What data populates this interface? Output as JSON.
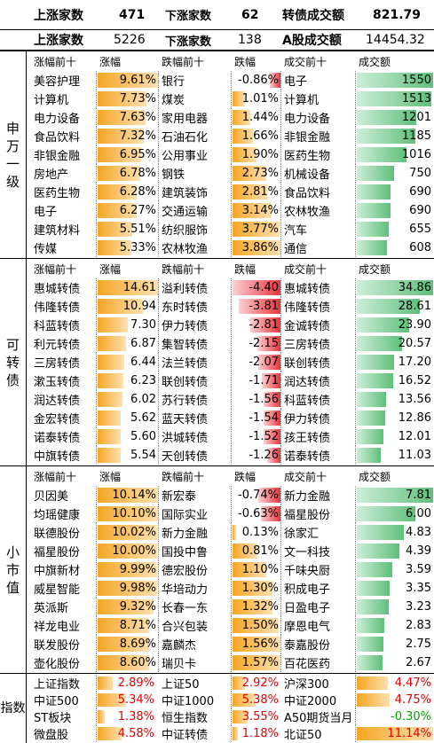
{
  "top1": {
    "up_label": "上涨家数",
    "up_val": "471",
    "down_label": "下涨家数",
    "down_val": "62",
    "vol_label": "转债成交额",
    "vol_val": "821.79"
  },
  "top2": {
    "up_label": "上涨家数",
    "up_val": "5226",
    "down_label": "下涨家数",
    "down_val": "138",
    "vol_label": "A股成交额",
    "vol_val": "14454.32"
  },
  "sw": {
    "label": "申万一级",
    "headers": [
      "涨幅前十",
      "涨幅",
      "跌幅前十",
      "跌幅",
      "成交前十",
      "成交额"
    ],
    "rows": [
      [
        "美容护理",
        "9.61%",
        "银行",
        "-0.86%",
        "电子",
        "1550"
      ],
      [
        "计算机",
        "7.73%",
        "煤炭",
        "1.01%",
        "计算机",
        "1513"
      ],
      [
        "电力设备",
        "7.63%",
        "家用电器",
        "1.44%",
        "电力设备",
        "1201"
      ],
      [
        "食品饮料",
        "7.32%",
        "石油石化",
        "1.66%",
        "非银金融",
        "1185"
      ],
      [
        "非银金融",
        "6.95%",
        "公用事业",
        "1.90%",
        "医药生物",
        "1016"
      ],
      [
        "房地产",
        "6.78%",
        "钢铁",
        "2.73%",
        "机械设备",
        "750"
      ],
      [
        "医药生物",
        "6.28%",
        "建筑装饰",
        "2.81%",
        "食品饮料",
        "690"
      ],
      [
        "电子",
        "6.27%",
        "交通运输",
        "3.14%",
        "农林牧渔",
        "690"
      ],
      [
        "建筑材料",
        "5.51%",
        "纺织服饰",
        "3.77%",
        "汽车",
        "655"
      ],
      [
        "传媒",
        "5.33%",
        "农林牧渔",
        "3.86%",
        "通信",
        "608"
      ]
    ],
    "up_vals": [
      9.61,
      7.73,
      7.63,
      7.32,
      6.95,
      6.78,
      6.28,
      6.27,
      5.51,
      5.33
    ],
    "dn_vals": [
      -0.86,
      1.01,
      1.44,
      1.66,
      1.9,
      2.73,
      2.81,
      3.14,
      3.77,
      3.86
    ],
    "vol_vals": [
      1550,
      1513,
      1201,
      1185,
      1016,
      750,
      690,
      690,
      655,
      608
    ]
  },
  "cb": {
    "label": "可转债",
    "headers": [
      "涨幅前十",
      "涨幅",
      "跌幅前十",
      "跌幅",
      "成交前十",
      "成交额"
    ],
    "rows": [
      [
        "惠城转债",
        "14.61",
        "溢利转债",
        "-4.40",
        "惠城转债",
        "34.86"
      ],
      [
        "伟隆转债",
        "10.94",
        "东时转债",
        "-3.81",
        "伟隆转债",
        "28.61"
      ],
      [
        "科蓝转债",
        "7.30",
        "伊力转债",
        "-2.81",
        "金诚转债",
        "23.90"
      ],
      [
        "利元转债",
        "6.87",
        "集智转债",
        "-2.15",
        "三房转债",
        "20.57"
      ],
      [
        "三房转债",
        "6.44",
        "法兰转债",
        "-2.07",
        "联创转债",
        "17.20"
      ],
      [
        "漱玉转债",
        "6.23",
        "联创转债",
        "-1.71",
        "润达转债",
        "16.52"
      ],
      [
        "润达转债",
        "6.02",
        "苏行转债",
        "-1.56",
        "科蓝转债",
        "13.56"
      ],
      [
        "金宏转债",
        "5.62",
        "蓝天转债",
        "-1.54",
        "伊力转债",
        "12.86"
      ],
      [
        "诺泰转债",
        "5.60",
        "洪城转债",
        "-1.52",
        "孩王转债",
        "12.01"
      ],
      [
        "中旗转债",
        "5.54",
        "天创转债",
        "-1.26",
        "诺泰转债",
        "11.03"
      ]
    ],
    "up_vals": [
      14.61,
      10.94,
      7.3,
      6.87,
      6.44,
      6.23,
      6.02,
      5.62,
      5.6,
      5.54
    ],
    "dn_vals": [
      -4.4,
      -3.81,
      -2.81,
      -2.15,
      -2.07,
      -1.71,
      -1.56,
      -1.54,
      -1.52,
      -1.26
    ],
    "vol_vals": [
      34.86,
      28.61,
      23.9,
      20.57,
      17.2,
      16.52,
      13.56,
      12.86,
      12.01,
      11.03
    ]
  },
  "sm": {
    "label": "小市值",
    "headers": [
      "涨幅前十",
      "涨幅",
      "跌幅前十",
      "跌幅",
      "成交前十",
      "成交额"
    ],
    "rows": [
      [
        "贝因美",
        "10.14%",
        "新宏泰",
        "-0.74%",
        "新力金融",
        "7.81"
      ],
      [
        "均瑶健康",
        "10.10%",
        "国际实业",
        "-0.63%",
        "福星股份",
        "6.00"
      ],
      [
        "联德股份",
        "10.02%",
        "新力金融",
        "0.13%",
        "徐家汇",
        "4.83"
      ],
      [
        "福星股份",
        "10.00%",
        "国投中鲁",
        "0.81%",
        "文一科技",
        "4.39"
      ],
      [
        "中旗新材",
        "9.99%",
        "德宏股份",
        "1.10%",
        "千味央厨",
        "3.59"
      ],
      [
        "威星智能",
        "9.98%",
        "华培动力",
        "1.30%",
        "积成电子",
        "3.35"
      ],
      [
        "英派斯",
        "9.32%",
        "长春一东",
        "1.32%",
        "日盈电子",
        "3.23"
      ],
      [
        "祥龙电业",
        "8.71%",
        "合兴包装",
        "1.50%",
        "摩恩电气",
        "2.83"
      ],
      [
        "联发股份",
        "8.69%",
        "嘉麟杰",
        "1.56%",
        "泰嘉股份",
        "2.75"
      ],
      [
        "壶化股份",
        "8.60%",
        "瑞贝卡",
        "1.57%",
        "百花医药",
        "2.67"
      ]
    ],
    "up_vals": [
      10.14,
      10.1,
      10.02,
      10.0,
      9.99,
      9.98,
      9.32,
      8.71,
      8.69,
      8.6
    ],
    "dn_vals": [
      -0.74,
      -0.63,
      0.13,
      0.81,
      1.1,
      1.3,
      1.32,
      1.5,
      1.56,
      1.57
    ],
    "vol_vals": [
      7.81,
      6.0,
      4.83,
      4.39,
      3.59,
      3.35,
      3.23,
      2.83,
      2.75,
      2.67
    ]
  },
  "idx": {
    "label": "指数",
    "rows": [
      [
        "上证指数",
        "2.89%",
        "上证50",
        "2.92%",
        "沪深300",
        "4.47%"
      ],
      [
        "中证500",
        "5.34%",
        "中证1000",
        "5.38%",
        "中证2000",
        "4.75%"
      ],
      [
        "ST板块",
        "1.38%",
        "恒生指数",
        "3.55%",
        "A50期货当月",
        "-0.30%"
      ],
      [
        "微盘股",
        "4.58%",
        "中证转债",
        "1.18%",
        "北证50",
        "11.14%"
      ]
    ],
    "vals": [
      [
        2.89,
        2.92,
        4.47
      ],
      [
        5.34,
        5.38,
        4.75
      ],
      [
        1.38,
        3.55,
        -0.3
      ],
      [
        4.58,
        1.18,
        11.14
      ]
    ]
  }
}
